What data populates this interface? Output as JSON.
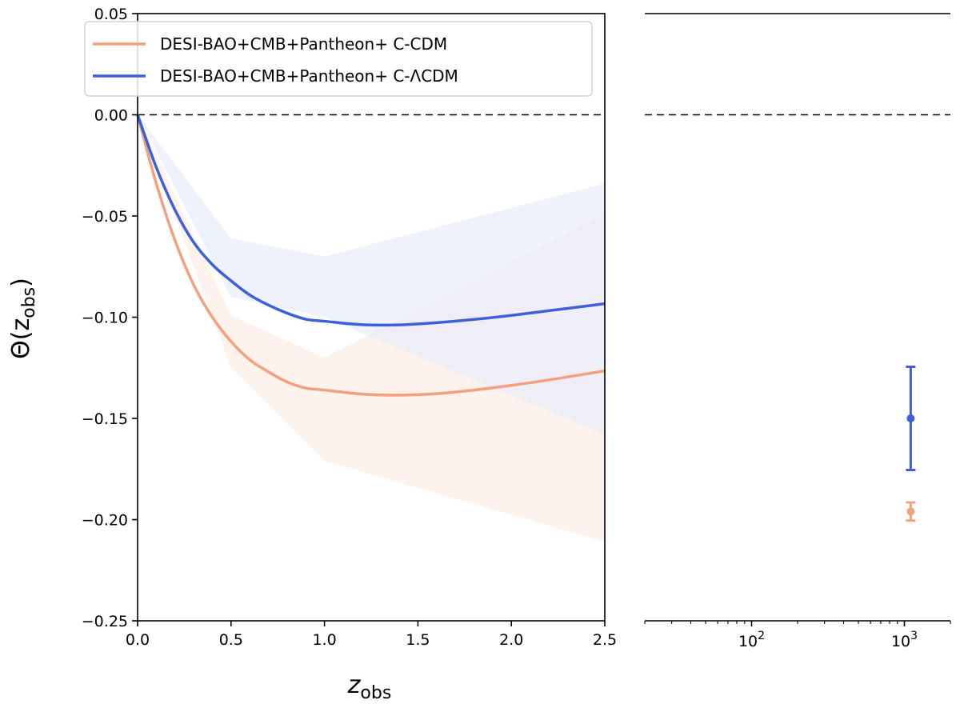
{
  "chart_data": [
    {
      "panel": "left",
      "type": "line",
      "xlabel": "z",
      "xlabel_sub": "obs",
      "ylabel": "Θ(z",
      "ylabel_sub": "obs",
      "ylabel_close": ")",
      "xlim": [
        0.0,
        2.5
      ],
      "ylim": [
        -0.25,
        0.05
      ],
      "xticks": [
        0.0,
        0.5,
        1.0,
        1.5,
        2.0,
        2.5
      ],
      "xtick_labels": [
        "0.0",
        "0.5",
        "1.0",
        "1.5",
        "2.0",
        "2.5"
      ],
      "yticks": [
        0.05,
        0.0,
        -0.05,
        -0.1,
        -0.15,
        -0.2,
        -0.25
      ],
      "ytick_labels": [
        "0.05",
        "0.00",
        "−0.05",
        "−0.10",
        "−0.15",
        "−0.20",
        "−0.25"
      ],
      "reference_line_y": 0.0,
      "legend_position": "top-left",
      "series": [
        {
          "name": "DESI-BAO+CMB+Pantheon+ C-CDM",
          "color": "#f4a07e",
          "band_color": "#fdeee6",
          "x": [
            0.0,
            0.1,
            0.2,
            0.3,
            0.4,
            0.5,
            0.6,
            0.7,
            0.8,
            0.9,
            1.0,
            1.2,
            1.4,
            1.6,
            1.8,
            2.0,
            2.2,
            2.4,
            2.5
          ],
          "values": [
            0.0,
            -0.034,
            -0.062,
            -0.084,
            -0.1,
            -0.112,
            -0.121,
            -0.127,
            -0.132,
            -0.135,
            -0.136,
            -0.138,
            -0.1385,
            -0.1378,
            -0.136,
            -0.1337,
            -0.131,
            -0.128,
            -0.1265
          ],
          "band_x": [
            0.0,
            0.5,
            1.0,
            2.5
          ],
          "band_lower": [
            0.0,
            -0.125,
            -0.171,
            -0.211
          ],
          "band_upper": [
            0.0,
            -0.099,
            -0.12,
            -0.049
          ]
        },
        {
          "name": "DESI-BAO+CMB+Pantheon+ C-ΛCDM",
          "color": "#3d5fd9",
          "band_color": "#e9ecf9",
          "x": [
            0.0,
            0.1,
            0.2,
            0.3,
            0.4,
            0.5,
            0.6,
            0.7,
            0.8,
            0.9,
            1.0,
            1.2,
            1.4,
            1.6,
            1.8,
            2.0,
            2.2,
            2.4,
            2.5
          ],
          "values": [
            0.0,
            -0.026,
            -0.047,
            -0.063,
            -0.074,
            -0.082,
            -0.089,
            -0.094,
            -0.098,
            -0.101,
            -0.102,
            -0.1037,
            -0.1038,
            -0.1027,
            -0.1011,
            -0.0991,
            -0.0968,
            -0.0945,
            -0.0933
          ],
          "band_x": [
            0.0,
            0.5,
            1.0,
            2.5
          ],
          "band_lower": [
            0.0,
            -0.09,
            -0.1,
            -0.158
          ],
          "band_upper": [
            0.0,
            -0.061,
            -0.07,
            -0.034
          ]
        }
      ]
    },
    {
      "panel": "right",
      "type": "scatter",
      "xscale": "log",
      "xlim": [
        20,
        2000
      ],
      "ylim": [
        -0.25,
        0.05
      ],
      "xtick_base": "10",
      "xtick_exponents": [
        "2",
        "3"
      ],
      "reference_line_y": 0.0,
      "points": [
        {
          "name": "DESI-BAO+CMB+Pantheon+ C-ΛCDM",
          "color": "#3d5fd9",
          "x": 1100,
          "y": -0.15,
          "yerr_lower": 0.0255,
          "yerr_upper": 0.0255
        },
        {
          "name": "DESI-BAO+CMB+Pantheon+ C-CDM",
          "color": "#f4a07e",
          "x": 1100,
          "y": -0.196,
          "yerr_lower": 0.0045,
          "yerr_upper": 0.0045
        }
      ]
    }
  ]
}
